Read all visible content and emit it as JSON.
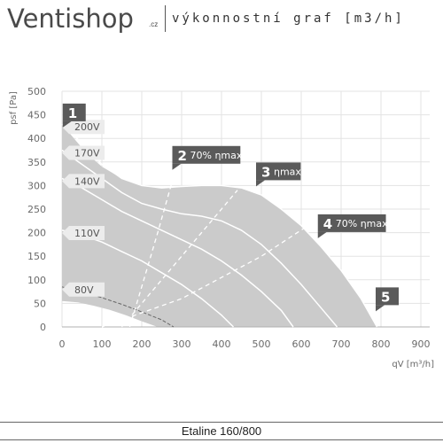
{
  "header": {
    "logo_text": "Ventishop",
    "logo_suffix": ".cz",
    "subtitle": "výkonnostní graf [m3/h]"
  },
  "footer": {
    "title": "Etaline 160/800"
  },
  "chart_data": {
    "type": "area",
    "xlabel": "qV [m³/h]",
    "ylabel": "psf [Pa]",
    "xlim": [
      0,
      900
    ],
    "ylim": [
      0,
      500
    ],
    "xticks": [
      0,
      100,
      200,
      300,
      400,
      500,
      600,
      700,
      800,
      900
    ],
    "yticks": [
      0,
      50,
      100,
      150,
      200,
      250,
      300,
      350,
      400,
      450,
      500
    ],
    "grid": true,
    "envelope": {
      "upper": [
        [
          0,
          430
        ],
        [
          30,
          400
        ],
        [
          60,
          370
        ],
        [
          100,
          340
        ],
        [
          150,
          315
        ],
        [
          200,
          300
        ],
        [
          250,
          295
        ],
        [
          300,
          298
        ],
        [
          350,
          300
        ],
        [
          400,
          300
        ],
        [
          450,
          295
        ],
        [
          500,
          280
        ],
        [
          550,
          250
        ],
        [
          600,
          215
        ],
        [
          650,
          170
        ],
        [
          700,
          120
        ],
        [
          750,
          60
        ],
        [
          790,
          0
        ]
      ],
      "lower": [
        [
          240,
          0
        ],
        [
          200,
          12
        ],
        [
          160,
          25
        ],
        [
          120,
          36
        ],
        [
          80,
          45
        ],
        [
          40,
          52
        ],
        [
          0,
          55
        ]
      ]
    },
    "voltage_curves": [
      {
        "label": "200V",
        "points": [
          [
            0,
            430
          ],
          [
            50,
            390
          ],
          [
            100,
            345
          ],
          [
            150,
            315
          ],
          [
            200,
            300
          ],
          [
            250,
            295
          ],
          [
            300,
            298
          ],
          [
            350,
            300
          ],
          [
            400,
            300
          ],
          [
            450,
            295
          ],
          [
            500,
            280
          ],
          [
            550,
            250
          ],
          [
            600,
            215
          ],
          [
            650,
            170
          ],
          [
            700,
            120
          ],
          [
            750,
            60
          ],
          [
            790,
            0
          ]
        ]
      },
      {
        "label": "170V",
        "points": [
          [
            0,
            375
          ],
          [
            50,
            345
          ],
          [
            100,
            315
          ],
          [
            150,
            285
          ],
          [
            200,
            262
          ],
          [
            250,
            250
          ],
          [
            300,
            240
          ],
          [
            350,
            235
          ],
          [
            400,
            225
          ],
          [
            450,
            205
          ],
          [
            500,
            175
          ],
          [
            550,
            135
          ],
          [
            600,
            90
          ],
          [
            650,
            40
          ],
          [
            690,
            0
          ]
        ]
      },
      {
        "label": "140V",
        "points": [
          [
            0,
            315
          ],
          [
            50,
            295
          ],
          [
            100,
            270
          ],
          [
            150,
            245
          ],
          [
            200,
            225
          ],
          [
            250,
            205
          ],
          [
            300,
            185
          ],
          [
            350,
            165
          ],
          [
            400,
            140
          ],
          [
            450,
            110
          ],
          [
            500,
            75
          ],
          [
            550,
            35
          ],
          [
            580,
            0
          ]
        ]
      },
      {
        "label": "110V",
        "points": [
          [
            0,
            205
          ],
          [
            50,
            195
          ],
          [
            100,
            180
          ],
          [
            150,
            160
          ],
          [
            200,
            140
          ],
          [
            250,
            115
          ],
          [
            300,
            90
          ],
          [
            350,
            60
          ],
          [
            400,
            25
          ],
          [
            430,
            0
          ]
        ]
      },
      {
        "label": "80V",
        "points": [
          [
            0,
            85
          ],
          [
            50,
            75
          ],
          [
            100,
            62
          ],
          [
            150,
            48
          ],
          [
            200,
            32
          ],
          [
            250,
            15
          ],
          [
            280,
            0
          ]
        ]
      }
    ],
    "efficiency_lines": [
      {
        "points": [
          [
            170,
            0
          ],
          [
            205,
            100
          ],
          [
            240,
            200
          ],
          [
            275,
            305
          ]
        ]
      },
      {
        "points": [
          [
            150,
            0
          ],
          [
            250,
            100
          ],
          [
            350,
            200
          ],
          [
            440,
            290
          ]
        ]
      },
      {
        "points": [
          [
            100,
            0
          ],
          [
            300,
            60
          ],
          [
            500,
            150
          ],
          [
            680,
            250
          ]
        ]
      }
    ],
    "markers": [
      {
        "num": "1",
        "text": "",
        "x": 15,
        "y": 425
      },
      {
        "num": "2",
        "text": "70% ηmax",
        "x": 290,
        "y": 335
      },
      {
        "num": "3",
        "text": "ηmax",
        "x": 500,
        "y": 300
      },
      {
        "num": "4",
        "text": "70% ηmax",
        "x": 655,
        "y": 190
      },
      {
        "num": "5",
        "text": "",
        "x": 800,
        "y": 35
      }
    ],
    "colors": {
      "fill": "#cbcbcb",
      "curve": "#ffffff",
      "marker": "#5a5a5a",
      "grid": "#e3e3e3"
    }
  }
}
